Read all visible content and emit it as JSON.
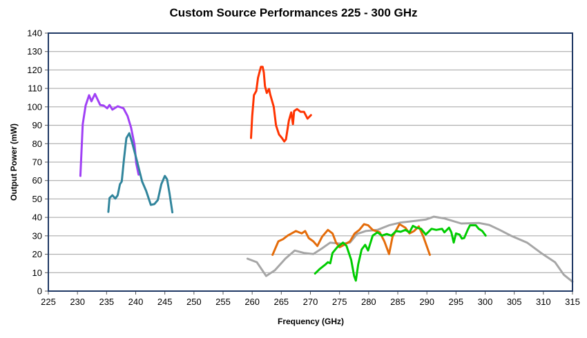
{
  "chart_data": {
    "type": "line",
    "title": "Custom Source Performances 225 - 300 GHz",
    "xlabel": "Frequency (GHz)",
    "ylabel": "Output Power (mW)",
    "xlim": [
      225,
      315
    ],
    "ylim": [
      0,
      140
    ],
    "xticks": [
      225,
      230,
      235,
      240,
      245,
      250,
      255,
      260,
      265,
      270,
      275,
      280,
      285,
      290,
      295,
      300,
      305,
      310,
      315
    ],
    "yticks": [
      0,
      10,
      20,
      30,
      40,
      50,
      60,
      70,
      80,
      90,
      100,
      110,
      120,
      130,
      140
    ],
    "grid": "horizontal",
    "legend": "none",
    "series": [
      {
        "name": "purple",
        "color": "#A040F5",
        "points": [
          [
            230.5,
            62.5
          ],
          [
            230.9,
            90.6
          ],
          [
            231.4,
            100.7
          ],
          [
            232.0,
            106.3
          ],
          [
            232.4,
            103
          ],
          [
            233.0,
            107
          ],
          [
            233.9,
            101
          ],
          [
            234.5,
            100.7
          ],
          [
            235.1,
            99.2
          ],
          [
            235.5,
            101
          ],
          [
            236.0,
            98.5
          ],
          [
            236.9,
            100.3
          ],
          [
            237.9,
            99.2
          ],
          [
            238.6,
            95
          ],
          [
            239.2,
            88.7
          ],
          [
            239.8,
            79.4
          ],
          [
            240.1,
            69.3
          ],
          [
            240.5,
            63.2
          ]
        ]
      },
      {
        "name": "teal",
        "color": "#31859C",
        "points": [
          [
            235.3,
            43
          ],
          [
            235.5,
            50.5
          ],
          [
            236.0,
            52
          ],
          [
            236.5,
            50.2
          ],
          [
            236.9,
            52
          ],
          [
            237.3,
            58
          ],
          [
            237.6,
            59.5
          ],
          [
            238.0,
            71.9
          ],
          [
            238.4,
            83
          ],
          [
            238.9,
            85.7
          ],
          [
            239.4,
            80.5
          ],
          [
            240.2,
            70.8
          ],
          [
            241.1,
            59.5
          ],
          [
            241.8,
            54.3
          ],
          [
            242.6,
            46.8
          ],
          [
            243.2,
            47.2
          ],
          [
            243.8,
            49.4
          ],
          [
            244.4,
            58
          ],
          [
            245.0,
            62.5
          ],
          [
            245.4,
            60.6
          ],
          [
            245.8,
            53.2
          ],
          [
            246.3,
            42.7
          ]
        ]
      },
      {
        "name": "red",
        "color": "#FF3300",
        "points": [
          [
            259.8,
            83.1
          ],
          [
            260.0,
            95
          ],
          [
            260.3,
            106.3
          ],
          [
            260.7,
            108.6
          ],
          [
            261.0,
            115.7
          ],
          [
            261.5,
            121.7
          ],
          [
            261.8,
            121.7
          ],
          [
            262.0,
            118.7
          ],
          [
            262.2,
            111.2
          ],
          [
            262.5,
            107.5
          ],
          [
            262.9,
            109.7
          ],
          [
            263.1,
            106.7
          ],
          [
            263.7,
            100
          ],
          [
            264.1,
            89.9
          ],
          [
            264.6,
            85
          ],
          [
            265.1,
            83.1
          ],
          [
            265.5,
            81.2
          ],
          [
            265.8,
            82.4
          ],
          [
            266.3,
            92.5
          ],
          [
            266.7,
            97
          ],
          [
            267.0,
            90.6
          ],
          [
            267.2,
            97.7
          ],
          [
            267.7,
            98.8
          ],
          [
            268.3,
            97.3
          ],
          [
            268.9,
            97.3
          ],
          [
            269.5,
            93.6
          ],
          [
            270.1,
            95.5
          ]
        ]
      },
      {
        "name": "gray",
        "color": "#A6A6A6",
        "points": [
          [
            259.2,
            17.6
          ],
          [
            260.8,
            15.7
          ],
          [
            262.4,
            8.2
          ],
          [
            263.9,
            11.3
          ],
          [
            265.7,
            17.6
          ],
          [
            267.3,
            22
          ],
          [
            268.9,
            20.7
          ],
          [
            270.5,
            20.1
          ],
          [
            272.0,
            23.2
          ],
          [
            273.4,
            26.3
          ],
          [
            275.2,
            25.7
          ],
          [
            276.8,
            26.3
          ],
          [
            278.0,
            31
          ],
          [
            279.5,
            32.6
          ],
          [
            281.5,
            33.2
          ],
          [
            283.5,
            35.7
          ],
          [
            285.5,
            37.2
          ],
          [
            288.2,
            38.2
          ],
          [
            289.8,
            38.8
          ],
          [
            291.2,
            40.4
          ],
          [
            293.0,
            39.4
          ],
          [
            295.9,
            36.7
          ],
          [
            298.9,
            37
          ],
          [
            300.7,
            35.9
          ],
          [
            302.5,
            33.2
          ],
          [
            304.4,
            30.1
          ],
          [
            307.2,
            26.3
          ],
          [
            309.6,
            20.7
          ],
          [
            312.0,
            15.7
          ],
          [
            313.5,
            8.9
          ],
          [
            315,
            5.1
          ]
        ]
      },
      {
        "name": "orange",
        "color": "#E46C0A",
        "points": [
          [
            263.5,
            19.7
          ],
          [
            264.5,
            27
          ],
          [
            265.3,
            28.2
          ],
          [
            266.1,
            30.1
          ],
          [
            267.5,
            32.6
          ],
          [
            268.5,
            31.3
          ],
          [
            269.1,
            32.6
          ],
          [
            269.7,
            28.8
          ],
          [
            270.5,
            27
          ],
          [
            271.2,
            24.5
          ],
          [
            272.0,
            29.5
          ],
          [
            273.0,
            33.2
          ],
          [
            273.8,
            31.3
          ],
          [
            274.4,
            26.3
          ],
          [
            275.0,
            23.8
          ],
          [
            275.8,
            25.1
          ],
          [
            276.8,
            27
          ],
          [
            277.6,
            31.3
          ],
          [
            278.4,
            33.2
          ],
          [
            279.2,
            36.3
          ],
          [
            279.9,
            35.7
          ],
          [
            280.7,
            33.2
          ],
          [
            281.9,
            31.9
          ],
          [
            282.7,
            27
          ],
          [
            283.5,
            20.1
          ],
          [
            284.1,
            29.5
          ],
          [
            285.3,
            36.3
          ],
          [
            286.3,
            34.4
          ],
          [
            287.0,
            31.3
          ],
          [
            287.8,
            32.6
          ],
          [
            288.6,
            35.1
          ],
          [
            289.4,
            29.5
          ],
          [
            290.5,
            19.7
          ]
        ]
      },
      {
        "name": "green",
        "color": "#00CC00",
        "points": [
          [
            270.8,
            9.5
          ],
          [
            271.6,
            12
          ],
          [
            272.6,
            14.5
          ],
          [
            273.0,
            15.7
          ],
          [
            273.4,
            15.1
          ],
          [
            273.8,
            20.7
          ],
          [
            274.6,
            23.8
          ],
          [
            275.6,
            26.3
          ],
          [
            276.2,
            24.5
          ],
          [
            277.0,
            17
          ],
          [
            277.5,
            8.2
          ],
          [
            277.8,
            5.7
          ],
          [
            278.2,
            14.5
          ],
          [
            278.8,
            22.6
          ],
          [
            279.4,
            25.1
          ],
          [
            279.9,
            22
          ],
          [
            280.7,
            30.1
          ],
          [
            281.5,
            31.9
          ],
          [
            282.3,
            30.1
          ],
          [
            283.1,
            31
          ],
          [
            283.9,
            30.1
          ],
          [
            284.7,
            32.6
          ],
          [
            285.5,
            32.2
          ],
          [
            286.3,
            33.2
          ],
          [
            287.0,
            31.9
          ],
          [
            287.6,
            35.4
          ],
          [
            288.2,
            34.4
          ],
          [
            289.0,
            33.8
          ],
          [
            289.8,
            30.7
          ],
          [
            290.8,
            33.8
          ],
          [
            291.6,
            33.2
          ],
          [
            292.6,
            33.8
          ],
          [
            293.0,
            31.9
          ],
          [
            293.8,
            34.4
          ],
          [
            294.2,
            31.9
          ],
          [
            294.6,
            26.3
          ],
          [
            295.0,
            31.3
          ],
          [
            295.6,
            30.7
          ],
          [
            296.0,
            28.5
          ],
          [
            296.4,
            28.8
          ],
          [
            297.0,
            33.2
          ],
          [
            297.4,
            35.7
          ],
          [
            298.4,
            35.7
          ],
          [
            298.9,
            33.8
          ],
          [
            299.5,
            32.6
          ],
          [
            300.1,
            30.1
          ]
        ]
      }
    ]
  }
}
